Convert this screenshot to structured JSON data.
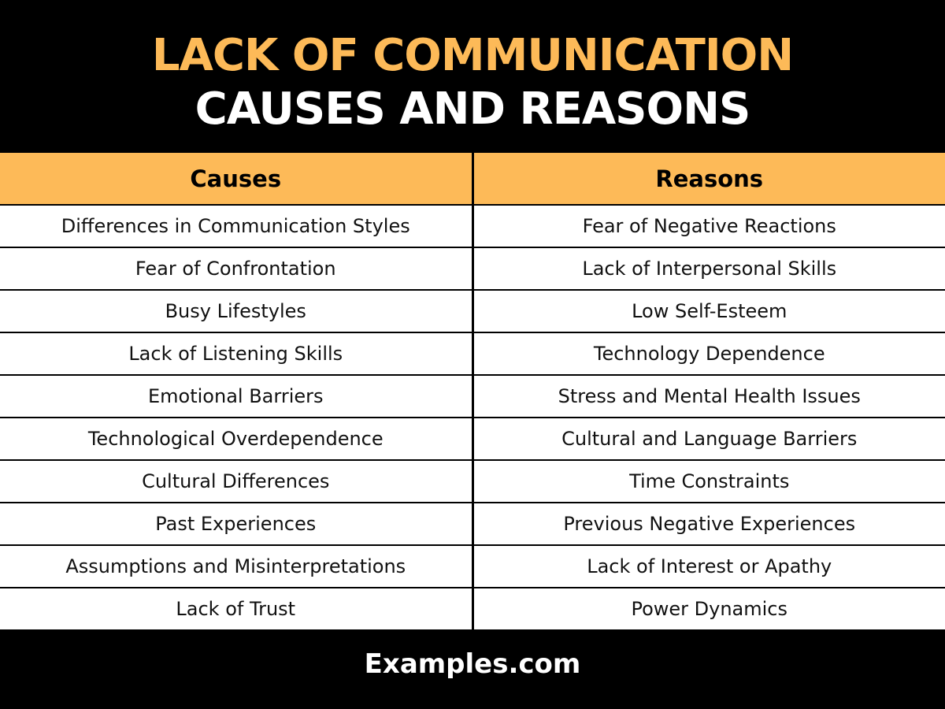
{
  "title": {
    "line1": "LACK OF COMMUNICATION",
    "line2": "CAUSES AND REASONS"
  },
  "colors": {
    "accent": "#FDBA58",
    "background": "#000000"
  },
  "table": {
    "headers": [
      "Causes",
      "Reasons"
    ],
    "rows": [
      [
        "Differences in Communication Styles",
        "Fear of Negative Reactions"
      ],
      [
        "Fear of Confrontation",
        "Lack of Interpersonal Skills"
      ],
      [
        "Busy Lifestyles",
        "Low Self-Esteem"
      ],
      [
        "Lack of Listening Skills",
        "Technology Dependence"
      ],
      [
        "Emotional Barriers",
        "Stress and Mental Health Issues"
      ],
      [
        "Technological Overdependence",
        "Cultural and Language Barriers"
      ],
      [
        "Cultural Differences",
        "Time Constraints"
      ],
      [
        "Past Experiences",
        "Previous Negative Experiences"
      ],
      [
        "Assumptions and Misinterpretations",
        "Lack of Interest or Apathy"
      ],
      [
        "Lack of Trust",
        "Power Dynamics"
      ]
    ]
  },
  "footer": {
    "brand": "Examples.com"
  }
}
